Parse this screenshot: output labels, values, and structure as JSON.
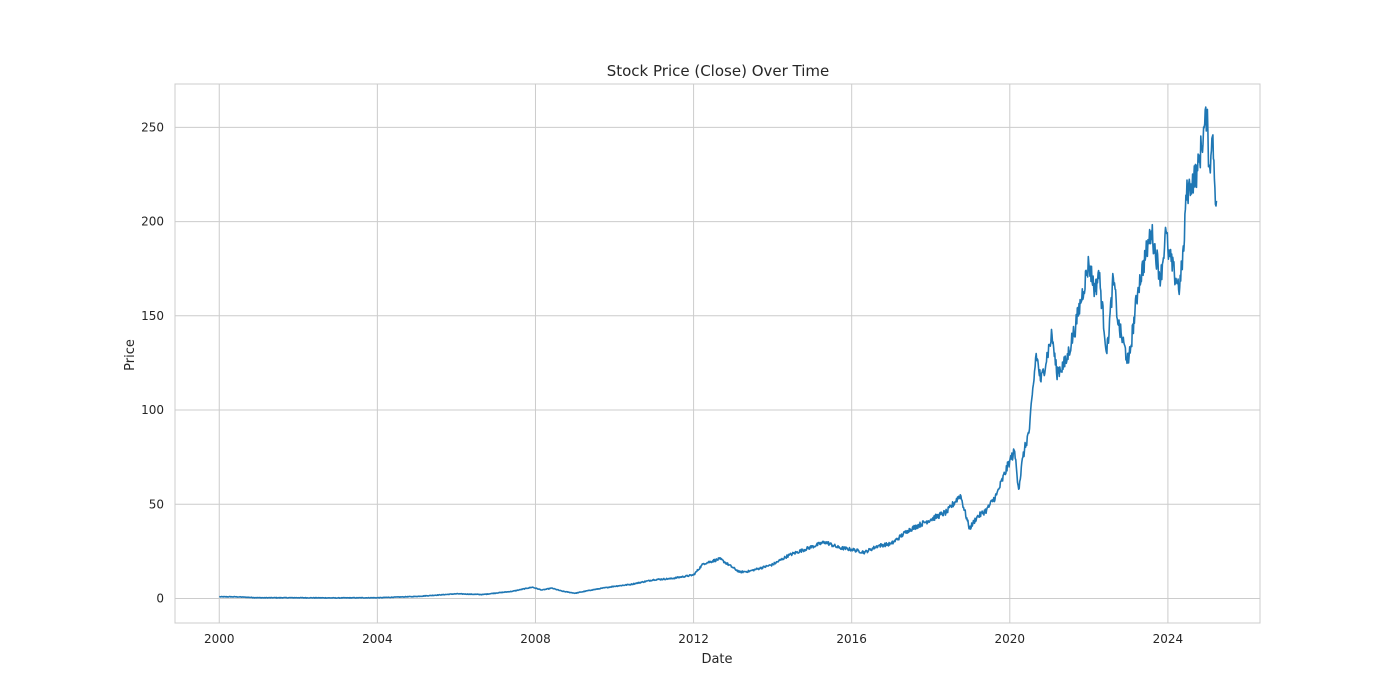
{
  "chart_data": {
    "type": "line",
    "title": "Stock Price (Close) Over Time",
    "xlabel": "Date",
    "ylabel": "Price",
    "xlim": [
      "1998-11-18",
      "2026-05-01"
    ],
    "ylim": [
      -13,
      273
    ],
    "x_ticks": [
      {
        "value": "2000-01-01",
        "label": "2000"
      },
      {
        "value": "2004-01-01",
        "label": "2004"
      },
      {
        "value": "2008-01-01",
        "label": "2008"
      },
      {
        "value": "2012-01-01",
        "label": "2012"
      },
      {
        "value": "2016-01-01",
        "label": "2016"
      },
      {
        "value": "2020-01-01",
        "label": "2020"
      },
      {
        "value": "2024-01-01",
        "label": "2024"
      }
    ],
    "y_ticks": [
      0,
      50,
      100,
      150,
      200,
      250
    ],
    "grid": true,
    "series": [
      {
        "color": "#1f77b4",
        "x": [
          "2000-01-01",
          "2000-06-01",
          "2001-01-01",
          "2002-01-01",
          "2003-01-01",
          "2004-01-01",
          "2005-01-01",
          "2006-01-01",
          "2006-09-01",
          "2007-01-01",
          "2007-06-01",
          "2007-12-01",
          "2008-03-01",
          "2008-06-01",
          "2008-09-01",
          "2009-01-01",
          "2009-06-01",
          "2010-01-01",
          "2010-06-01",
          "2011-01-01",
          "2011-06-01",
          "2012-01-01",
          "2012-04-01",
          "2012-09-01",
          "2013-03-01",
          "2013-06-01",
          "2014-01-01",
          "2014-06-01",
          "2015-01-01",
          "2015-05-01",
          "2015-09-01",
          "2016-01-01",
          "2016-05-01",
          "2016-09-01",
          "2017-01-01",
          "2017-06-01",
          "2018-01-01",
          "2018-06-01",
          "2018-10-01",
          "2018-12-25",
          "2019-03-01",
          "2019-06-01",
          "2019-09-01",
          "2019-12-31",
          "2020-02-15",
          "2020-03-23",
          "2020-05-01",
          "2020-07-01",
          "2020-09-01",
          "2020-10-15",
          "2021-01-25",
          "2021-03-08",
          "2021-06-01",
          "2021-09-01",
          "2021-12-31",
          "2022-03-01",
          "2022-04-01",
          "2022-06-16",
          "2022-08-15",
          "2022-10-01",
          "2023-01-03",
          "2023-04-01",
          "2023-07-31",
          "2023-10-27",
          "2023-12-15",
          "2024-01-01",
          "2024-03-01",
          "2024-04-19",
          "2024-06-01",
          "2024-06-15",
          "2024-08-01",
          "2024-10-01",
          "2024-12-26",
          "2025-01-15",
          "2025-02-01",
          "2025-02-20",
          "2025-03-10",
          "2025-03-25"
        ],
        "y": [
          0.9,
          0.9,
          0.4,
          0.4,
          0.3,
          0.4,
          1.1,
          2.5,
          2.1,
          2.9,
          3.8,
          6.0,
          4.5,
          5.5,
          3.9,
          2.8,
          4.5,
          6.5,
          7.5,
          10.0,
          10.5,
          12.5,
          18.5,
          21.0,
          14.0,
          14.5,
          18.0,
          23.0,
          27.5,
          30.0,
          27.0,
          26.0,
          24.5,
          28.0,
          29.0,
          36.0,
          42.0,
          46.0,
          55.0,
          37.0,
          43.0,
          47.0,
          55.0,
          73.0,
          78.0,
          58.0,
          75.0,
          90.0,
          130.0,
          115.0,
          140.0,
          120.0,
          125.0,
          145.0,
          178.0,
          163.0,
          174.0,
          130.0,
          170.0,
          145.0,
          125.0,
          165.0,
          195.0,
          170.0,
          195.0,
          185.0,
          172.0,
          165.0,
          190.0,
          214.0,
          220.0,
          227.0,
          258.0,
          230.0,
          235.0,
          246.0,
          218.0,
          211.0
        ]
      }
    ]
  }
}
